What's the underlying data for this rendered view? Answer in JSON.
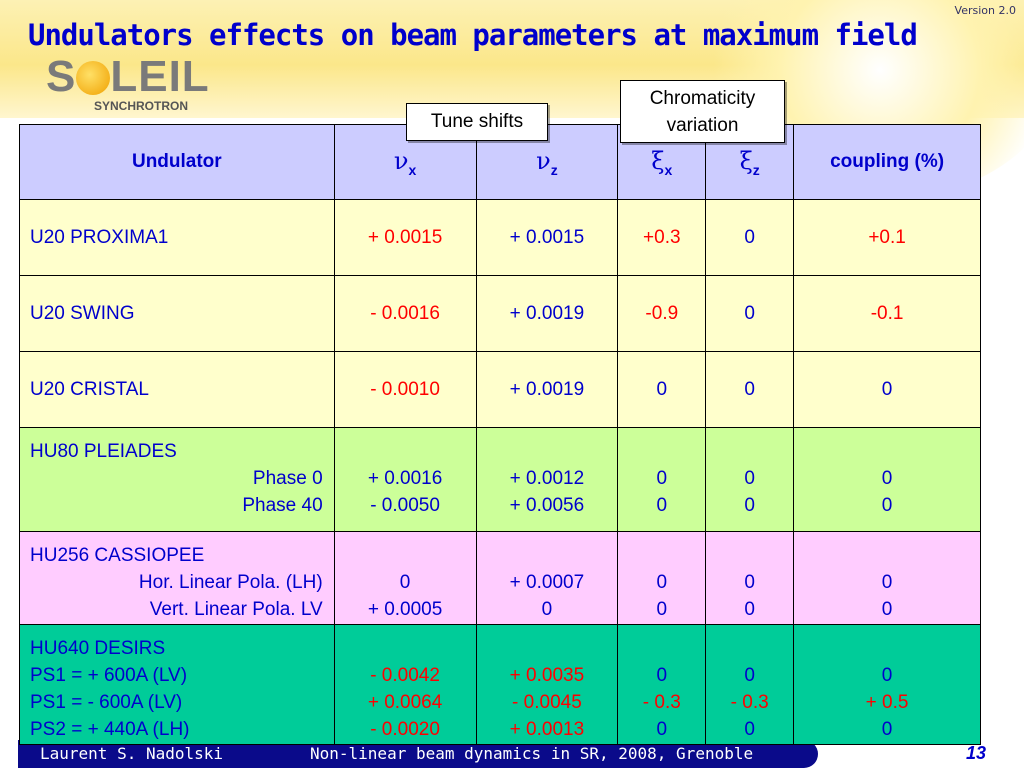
{
  "slide": {
    "version": "Version 2.0",
    "title": "Undulators effects on beam parameters at maximum field",
    "logo": {
      "word": "SOLEIL",
      "word_left": "S",
      "word_right": "LEIL",
      "sub": "SYNCHROTRON"
    },
    "callouts": {
      "tune": "Tune shifts",
      "chrom_line1": "Chromaticity",
      "chrom_line2": "variation"
    }
  },
  "table": {
    "headers": {
      "undulator": "Undulator",
      "nux_sym": "ν",
      "nux_sub": "x",
      "nuz_sym": "ν",
      "nuz_sub": "z",
      "xix_sym": "ξ",
      "xix_sub": "x",
      "xiz_sym": "ξ",
      "xiz_sub": "z",
      "coupling": "coupling (%)"
    },
    "rows": [
      {
        "name": "U20 PROXIMA1",
        "nux": "+ 0.0015",
        "nuz": "+ 0.0015",
        "xix": "+0.3",
        "xiz": "0",
        "coupling": "+0.1"
      },
      {
        "name": "U20 SWING",
        "nux": "- 0.0016",
        "nuz": "+ 0.0019",
        "xix": "-0.9",
        "xiz": "0",
        "coupling": "-0.1"
      },
      {
        "name": "U20 CRISTAL",
        "nux": "- 0.0010",
        "nuz": "+ 0.0019",
        "xix": "0",
        "xiz": "0",
        "coupling": "0"
      }
    ],
    "pleiades": {
      "name": "HU80 PLEIADES",
      "sub": [
        {
          "label": "Phase 0",
          "nux": "+ 0.0016",
          "nuz": "+ 0.0012",
          "xix": "0",
          "xiz": "0",
          "coupling": "0"
        },
        {
          "label": "Phase 40",
          "nux": "- 0.0050",
          "nuz": "+ 0.0056",
          "xix": "0",
          "xiz": "0",
          "coupling": "0"
        }
      ]
    },
    "cassiopee": {
      "name": "HU256 CASSIOPEE",
      "sub": [
        {
          "label": "Hor. Linear Pola. (LH)",
          "nux": "0",
          "nuz": "+ 0.0007",
          "xix": "0",
          "xiz": "0",
          "coupling": "0"
        },
        {
          "label": "Vert. Linear Pola. LV",
          "nux": "+ 0.0005",
          "nuz": "0",
          "xix": "0",
          "xiz": "0",
          "coupling": "0"
        }
      ]
    },
    "desirs": {
      "name": "HU640 DESIRS",
      "sub": [
        {
          "label": "PS1 = + 600A (LV)",
          "nux": "- 0.0042",
          "nuz": "+ 0.0035",
          "xix": "0",
          "xiz": "0",
          "coupling": "0"
        },
        {
          "label": "PS1 = - 600A (LV)",
          "nux": "+ 0.0064",
          "nuz": "- 0.0045",
          "xix": "- 0.3",
          "xiz": "- 0.3",
          "coupling": "+ 0.5"
        },
        {
          "label": "PS2 = + 440A (LH)",
          "nux": "- 0.0020",
          "nuz": "+ 0.0013",
          "xix": "0",
          "xiz": "0",
          "coupling": "0"
        }
      ]
    }
  },
  "footer": {
    "author": "Laurent S. Nadolski",
    "conference": "Non-linear beam dynamics in SR,  2008, Grenoble",
    "page": "13"
  },
  "colors": {
    "title": "#0000cc",
    "header_bg": "#ccccff",
    "yellow_row": "#ffffcc",
    "green_row": "#ccff99",
    "pink_row": "#ffccff",
    "teal_row": "#00cc99",
    "red_value": "#ff0000",
    "footer_bar": "#0a0a8a"
  }
}
